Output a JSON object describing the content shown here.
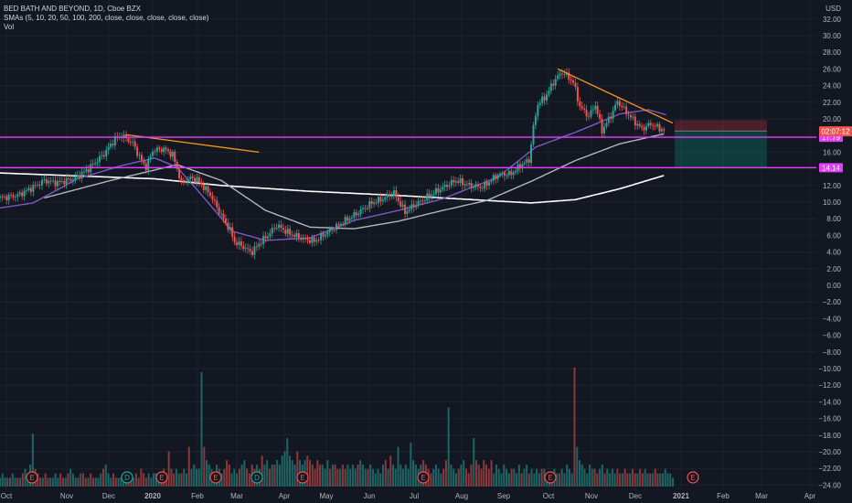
{
  "legend": {
    "title": "BED BATH AND BEYOND, 1D, Cboe BZX",
    "sma": "SMAs (5, 10, 20, 50, 100, 200, close, close, close, close, close)",
    "vol": "Vol"
  },
  "chart_data": {
    "type": "candlestick",
    "currency": "USD",
    "y_ticks": [
      32,
      30,
      28,
      26,
      24,
      22,
      20,
      18,
      16,
      14,
      12,
      10,
      8,
      6,
      4,
      2,
      0,
      -2,
      -4,
      -6,
      -8,
      -10,
      -12,
      -14,
      -16,
      -18,
      -20,
      -22,
      -24
    ],
    "y_tick_labels": [
      "32.00",
      "30.00",
      "28.00",
      "26.00",
      "24.00",
      "22.00",
      "20.00",
      "18.00",
      "16.00",
      "14.00",
      "12.00",
      "10.00",
      "8.00",
      "6.00",
      "4.00",
      "2.00",
      "0.00",
      "−2.00",
      "−4.00",
      "−6.00",
      "−8.00",
      "−10.00",
      "−12.00",
      "−14.00",
      "−16.00",
      "−18.00",
      "−20.00",
      "−22.00",
      "−24.00"
    ],
    "x_labels": [
      "Oct",
      "Nov",
      "Dec",
      "2020",
      "Feb",
      "Mar",
      "Apr",
      "May",
      "Jun",
      "Jul",
      "Aug",
      "Sep",
      "Oct",
      "Nov",
      "Dec",
      "2021",
      "Feb",
      "Mar",
      "Apr"
    ],
    "price_path": [
      [
        0,
        10.5
      ],
      [
        8,
        10.8
      ],
      [
        15,
        11.8
      ],
      [
        20,
        12.6
      ],
      [
        26,
        12.3
      ],
      [
        34,
        12.9
      ],
      [
        40,
        14.0
      ],
      [
        47,
        15.8
      ],
      [
        52,
        17.6
      ],
      [
        55,
        18.0
      ],
      [
        60,
        17.1
      ],
      [
        63,
        15.4
      ],
      [
        66,
        14.2
      ],
      [
        69,
        16.2
      ],
      [
        74,
        16.4
      ],
      [
        78,
        15.7
      ],
      [
        82,
        12.3
      ],
      [
        86,
        12.9
      ],
      [
        89,
        12.7
      ],
      [
        95,
        10.9
      ],
      [
        100,
        8.4
      ],
      [
        104,
        6.6
      ],
      [
        106,
        5.2
      ],
      [
        109,
        4.8
      ],
      [
        112,
        4.2
      ],
      [
        114,
        4.0
      ],
      [
        117,
        5.0
      ],
      [
        121,
        6.0
      ],
      [
        125,
        7.2
      ],
      [
        131,
        6.2
      ],
      [
        137,
        5.6
      ],
      [
        142,
        5.3
      ],
      [
        148,
        6.4
      ],
      [
        155,
        7.6
      ],
      [
        161,
        8.6
      ],
      [
        168,
        9.9
      ],
      [
        173,
        10.4
      ],
      [
        178,
        11.1
      ],
      [
        183,
        8.8
      ],
      [
        187,
        9.6
      ],
      [
        193,
        10.6
      ],
      [
        199,
        11.6
      ],
      [
        206,
        12.6
      ],
      [
        212,
        12.0
      ],
      [
        218,
        11.8
      ],
      [
        225,
        13.3
      ],
      [
        231,
        13.4
      ],
      [
        236,
        14.6
      ],
      [
        239,
        15.0
      ],
      [
        241,
        19.0
      ],
      [
        243,
        21.8
      ],
      [
        246,
        22.5
      ],
      [
        251,
        24.8
      ],
      [
        254,
        25.6
      ],
      [
        256,
        25.2
      ],
      [
        259,
        24.4
      ],
      [
        262,
        21.5
      ],
      [
        266,
        20.3
      ],
      [
        269,
        21.7
      ],
      [
        272,
        18.6
      ],
      [
        276,
        20.4
      ],
      [
        279,
        22.1
      ],
      [
        283,
        20.8
      ],
      [
        287,
        19.6
      ],
      [
        290,
        18.8
      ],
      [
        294,
        19.4
      ],
      [
        297,
        19.0
      ],
      [
        300,
        18.6
      ]
    ],
    "sma_white": [
      [
        0,
        13.5
      ],
      [
        30,
        13.2
      ],
      [
        70,
        12.8
      ],
      [
        100,
        12.0
      ],
      [
        140,
        11.3
      ],
      [
        180,
        10.8
      ],
      [
        220,
        10.2
      ],
      [
        240,
        9.9
      ],
      [
        260,
        10.3
      ],
      [
        280,
        11.6
      ],
      [
        300,
        13.2
      ]
    ],
    "sma_grey": [
      [
        20,
        10.5
      ],
      [
        50,
        12.6
      ],
      [
        80,
        14.5
      ],
      [
        100,
        12.6
      ],
      [
        120,
        9.0
      ],
      [
        140,
        7.0
      ],
      [
        160,
        6.8
      ],
      [
        180,
        7.7
      ],
      [
        200,
        9.0
      ],
      [
        220,
        10.2
      ],
      [
        240,
        12.5
      ],
      [
        260,
        15.0
      ],
      [
        280,
        17.0
      ],
      [
        300,
        18.2
      ]
    ],
    "sma_purple": [
      [
        0,
        9.3
      ],
      [
        15,
        9.9
      ],
      [
        35,
        12.8
      ],
      [
        55,
        14.4
      ],
      [
        70,
        15.3
      ],
      [
        80,
        14.2
      ],
      [
        90,
        11.2
      ],
      [
        105,
        6.5
      ],
      [
        120,
        5.4
      ],
      [
        140,
        5.7
      ],
      [
        160,
        7.8
      ],
      [
        180,
        9.0
      ],
      [
        200,
        10.4
      ],
      [
        225,
        13.0
      ],
      [
        242,
        16.6
      ],
      [
        262,
        18.6
      ],
      [
        280,
        20.6
      ],
      [
        293,
        21.1
      ],
      [
        301,
        20.5
      ]
    ],
    "trendlines": [
      {
        "from": [
          57,
          18.1
        ],
        "to": [
          117,
          16.0
        ],
        "color": "#f7931a"
      },
      {
        "from": [
          252,
          26.0
        ],
        "to": [
          304,
          19.5
        ],
        "color": "#f7931a"
      }
    ],
    "horizontal_levels": [
      {
        "value": 17.79,
        "label": "17.79",
        "color": "#e040fb"
      },
      {
        "value": 14.14,
        "label": "14.14",
        "color": "#e040fb"
      }
    ],
    "current_price_label": "02:07:12",
    "volume": [
      2,
      3,
      2,
      2,
      2,
      3,
      2,
      2,
      2,
      3,
      4,
      3,
      5,
      12,
      4,
      3,
      2,
      2,
      3,
      2,
      2,
      2,
      3,
      2,
      3,
      2,
      2,
      3,
      4,
      3,
      2,
      2,
      3,
      3,
      2,
      2,
      3,
      2,
      2,
      2,
      3,
      4,
      5,
      3,
      2,
      3,
      2,
      2,
      2,
      3,
      2,
      3,
      2,
      2,
      3,
      2,
      4,
      3,
      2,
      3,
      2,
      3,
      3,
      2,
      2,
      4,
      3,
      8,
      4,
      3,
      4,
      3,
      3,
      4,
      3,
      9,
      4,
      5,
      4,
      4,
      26,
      9,
      6,
      5,
      4,
      3,
      5,
      4,
      3,
      4,
      6,
      5,
      3,
      4,
      3,
      4,
      5,
      6,
      4,
      3,
      5,
      4,
      5,
      4,
      7,
      5,
      6,
      4,
      5,
      5,
      6,
      5,
      7,
      8,
      11,
      7,
      6,
      5,
      8,
      6,
      5,
      6,
      7,
      6,
      5,
      4,
      6,
      5,
      5,
      4,
      6,
      4,
      5,
      5,
      4,
      4,
      5,
      4,
      5,
      4,
      5,
      4,
      5,
      6,
      5,
      4,
      4,
      5,
      4,
      3,
      4,
      3,
      5,
      6,
      4,
      7,
      5,
      4,
      9,
      5,
      4,
      5,
      4,
      10,
      6,
      5,
      4,
      5,
      6,
      5,
      4,
      3,
      4,
      5,
      4,
      3,
      4,
      6,
      18,
      5,
      4,
      3,
      4,
      5,
      6,
      4,
      3,
      5,
      11,
      6,
      5,
      4,
      6,
      5,
      4,
      6,
      3,
      5,
      4,
      3,
      5,
      4,
      3,
      4,
      4,
      3,
      5,
      3,
      4,
      5,
      3,
      4,
      3,
      4,
      3,
      4,
      4,
      3,
      2,
      3,
      4,
      3,
      3,
      4,
      3,
      5,
      4,
      3,
      27,
      9,
      6,
      5,
      4,
      3,
      5,
      4,
      4,
      3,
      4,
      5,
      3,
      4,
      3,
      4,
      3,
      4,
      3,
      3,
      4,
      3,
      3,
      4,
      3,
      3,
      4,
      3,
      4,
      3,
      3,
      3,
      4,
      3,
      3,
      3,
      4,
      3,
      3,
      2
    ],
    "earnings_markers": [
      "E",
      "D",
      "E",
      "E",
      "D",
      "E",
      "E",
      "E",
      "E"
    ]
  }
}
